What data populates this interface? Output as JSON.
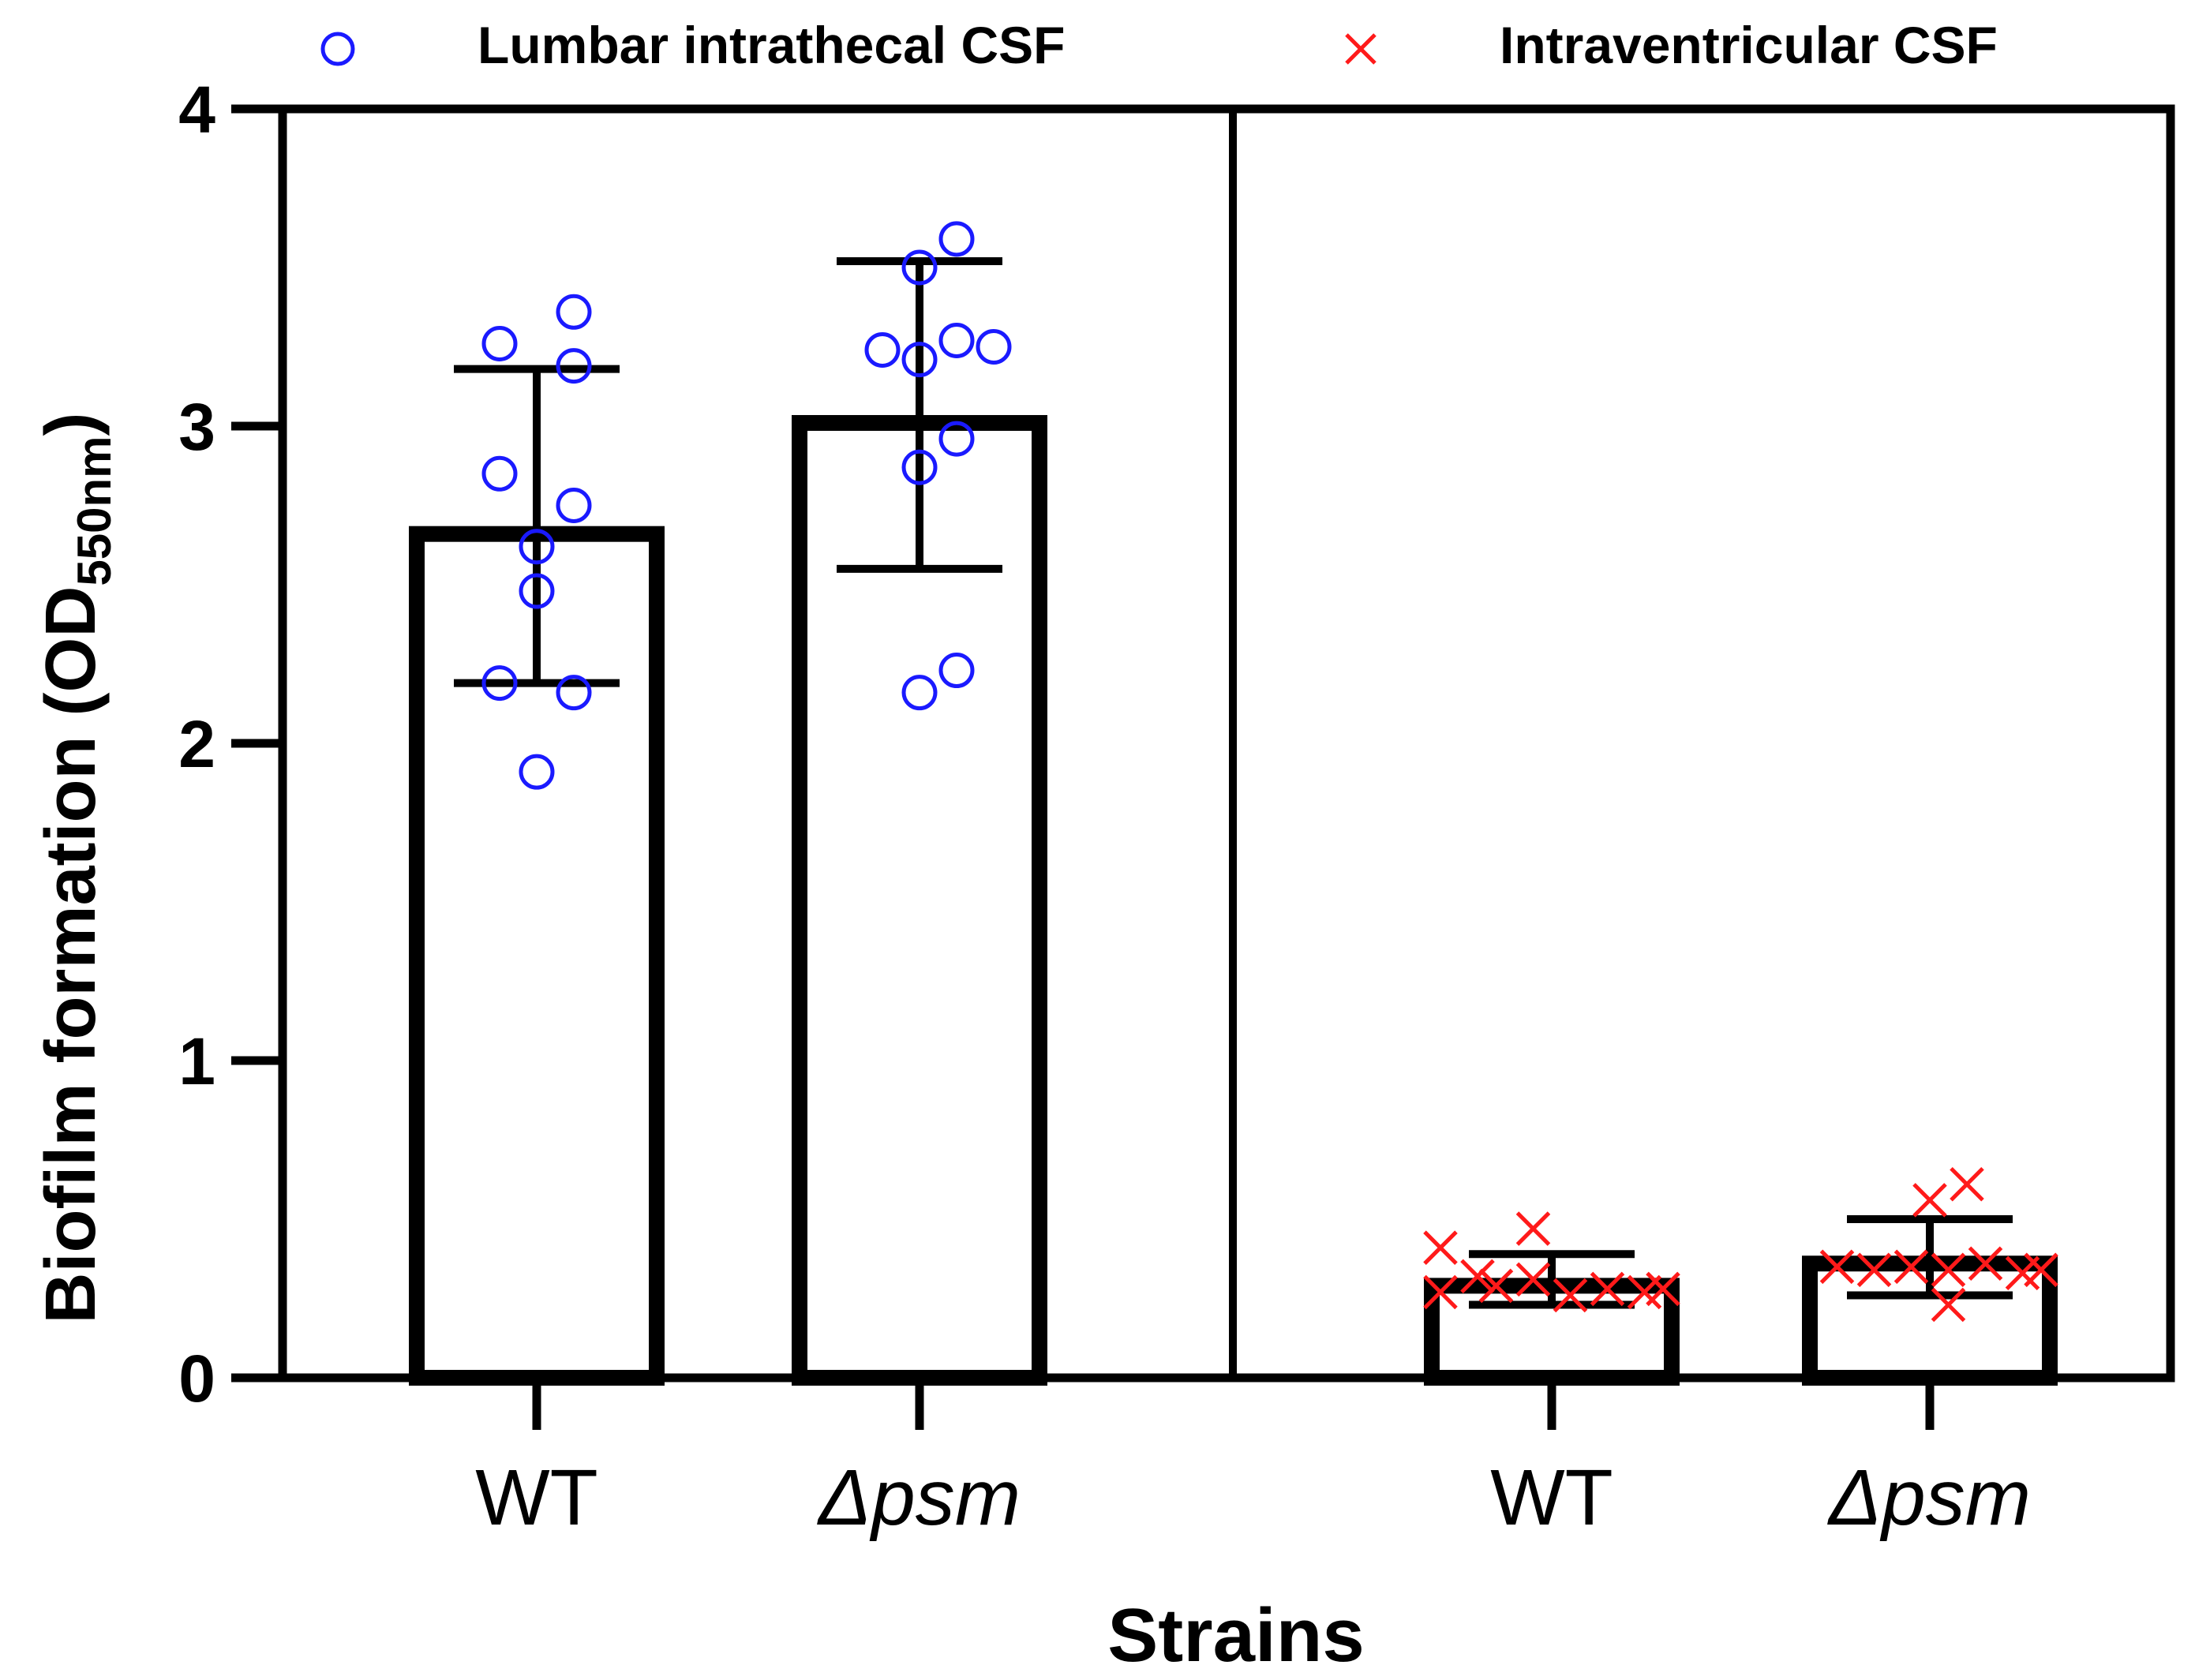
{
  "chart_data": {
    "type": "bar",
    "title": "",
    "xlabel": "Strains",
    "ylabel": "Biofilm formation (OD",
    "ylabel_sub": "550nm",
    "ylabel_close": ")",
    "ylim": [
      0,
      4
    ],
    "yticks": [
      "0",
      "1",
      "2",
      "3",
      "4"
    ],
    "legend_position": "top",
    "legend": [
      {
        "label": "Lumbar intrathecal CSF",
        "marker": "circle",
        "color": "#1a1aff"
      },
      {
        "label": "Intraventricular CSF",
        "marker": "cross",
        "color": "#ff1a1a"
      }
    ],
    "panels": [
      {
        "name": "Lumbar intrathecal CSF",
        "bars": [
          {
            "category": "WT",
            "prefix": "",
            "italic": "",
            "mean": 2.66,
            "sd_low": 2.19,
            "sd_high": 3.18,
            "points": [
              {
                "y": 3.36,
                "o": 1
              },
              {
                "y": 3.26,
                "o": -1
              },
              {
                "y": 3.19,
                "o": 1
              },
              {
                "y": 2.85,
                "o": -1
              },
              {
                "y": 2.75,
                "o": 1
              },
              {
                "y": 2.62,
                "o": 0
              },
              {
                "y": 2.48,
                "o": 0
              },
              {
                "y": 2.19,
                "o": -1
              },
              {
                "y": 2.16,
                "o": 1
              },
              {
                "y": 1.91,
                "o": 0
              }
            ]
          },
          {
            "category": "Δpsm",
            "prefix": "Δ",
            "italic": "psm",
            "mean": 3.01,
            "sd_low": 2.55,
            "sd_high": 3.52,
            "points": [
              {
                "y": 3.59,
                "o": 1
              },
              {
                "y": 3.5,
                "o": 0
              },
              {
                "y": 3.27,
                "o": 1
              },
              {
                "y": 3.25,
                "o": 2
              },
              {
                "y": 3.24,
                "o": -1
              },
              {
                "y": 3.21,
                "o": 0
              },
              {
                "y": 2.96,
                "o": 1
              },
              {
                "y": 2.87,
                "o": 0
              },
              {
                "y": 2.23,
                "o": 1
              },
              {
                "y": 2.16,
                "o": 0
              }
            ]
          }
        ]
      },
      {
        "name": "Intraventricular CSF",
        "bars": [
          {
            "category": "WT",
            "prefix": "",
            "italic": "",
            "mean": 0.29,
            "sd_low": 0.23,
            "sd_high": 0.39,
            "points": [
              {
                "y": 0.41,
                "o": -3
              },
              {
                "y": 0.47,
                "o": -0.5
              },
              {
                "y": 0.27,
                "o": -3
              },
              {
                "y": 0.32,
                "o": -2
              },
              {
                "y": 0.29,
                "o": -1.5
              },
              {
                "y": 0.31,
                "o": -0.5
              },
              {
                "y": 0.26,
                "o": 0.5
              },
              {
                "y": 0.28,
                "o": 1.5
              },
              {
                "y": 0.27,
                "o": 2.5
              },
              {
                "y": 0.28,
                "o": 3
              }
            ]
          },
          {
            "category": "Δpsm",
            "prefix": "Δ",
            "italic": "psm",
            "mean": 0.36,
            "sd_low": 0.26,
            "sd_high": 0.5,
            "points": [
              {
                "y": 0.61,
                "o": 1
              },
              {
                "y": 0.56,
                "o": 0
              },
              {
                "y": 0.35,
                "o": -2.5
              },
              {
                "y": 0.34,
                "o": -1.5
              },
              {
                "y": 0.35,
                "o": -0.5
              },
              {
                "y": 0.34,
                "o": 0.5
              },
              {
                "y": 0.36,
                "o": 1.5
              },
              {
                "y": 0.33,
                "o": 2.5
              },
              {
                "y": 0.34,
                "o": 3
              },
              {
                "y": 0.23,
                "o": 0.5
              }
            ]
          }
        ]
      }
    ]
  }
}
